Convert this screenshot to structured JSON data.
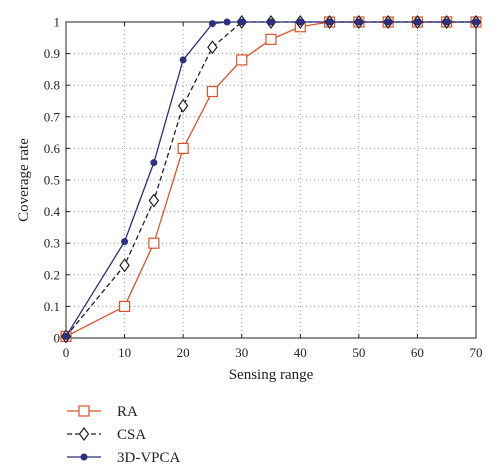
{
  "chart_data": {
    "type": "line",
    "xlabel": "Sensing range",
    "ylabel": "Coverage rate",
    "xlim": [
      0,
      70
    ],
    "ylim": [
      0,
      1
    ],
    "xticks": [
      0,
      10,
      20,
      30,
      40,
      50,
      60,
      70
    ],
    "yticks": [
      0,
      0.1,
      0.2,
      0.3,
      0.4,
      0.5,
      0.6,
      0.7,
      0.8,
      0.9,
      1
    ],
    "ytick_labels": [
      "0",
      "0.1",
      "0.2",
      "0.3",
      "0.4",
      "0.5",
      "0.6",
      "0.7",
      "0.8",
      "0.9",
      "1"
    ],
    "grid": true,
    "legend_position": "below",
    "series": [
      {
        "name": "RA",
        "color": "#d9542b",
        "line_style": "solid",
        "marker": "square",
        "x": [
          0,
          10,
          15,
          20,
          25,
          30,
          35,
          40,
          45,
          50,
          55,
          60,
          65,
          70
        ],
        "y": [
          0.005,
          0.1,
          0.3,
          0.6,
          0.78,
          0.88,
          0.945,
          0.985,
          1,
          1,
          1,
          1,
          1,
          1
        ]
      },
      {
        "name": "CSA",
        "color": "#222222",
        "line_style": "dashed",
        "marker": "diamond",
        "x": [
          0,
          10,
          15,
          20,
          25,
          30,
          35,
          40,
          45,
          50,
          55,
          60,
          65,
          70
        ],
        "y": [
          0.005,
          0.23,
          0.435,
          0.735,
          0.92,
          1,
          1,
          1,
          1,
          1,
          1,
          1,
          1,
          1
        ]
      },
      {
        "name": "3D-VPCA",
        "color": "#2e2f80",
        "line_style": "solid",
        "marker": "dot",
        "x": [
          0,
          10,
          15,
          20,
          25,
          27.5,
          30,
          35,
          40,
          45,
          50,
          55,
          60,
          65,
          70
        ],
        "y": [
          0.005,
          0.305,
          0.555,
          0.88,
          0.995,
          1,
          1,
          1,
          1,
          1,
          1,
          1,
          1,
          1,
          1
        ]
      }
    ]
  }
}
